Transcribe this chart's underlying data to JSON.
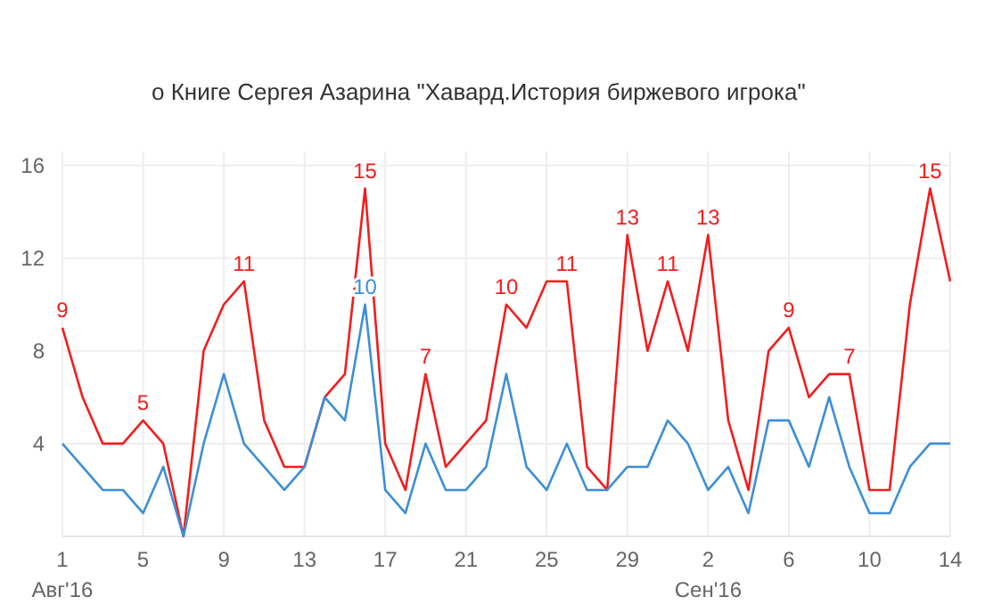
{
  "chart_data": {
    "type": "line",
    "subtitle": "о Книге Сергея Азарина \"Хавард.История биржевого игрока\"",
    "x": [
      "2016-08-01",
      "2016-08-02",
      "2016-08-03",
      "2016-08-04",
      "2016-08-05",
      "2016-08-06",
      "2016-08-07",
      "2016-08-08",
      "2016-08-09",
      "2016-08-10",
      "2016-08-11",
      "2016-08-12",
      "2016-08-13",
      "2016-08-14",
      "2016-08-15",
      "2016-08-16",
      "2016-08-17",
      "2016-08-18",
      "2016-08-19",
      "2016-08-20",
      "2016-08-21",
      "2016-08-22",
      "2016-08-23",
      "2016-08-24",
      "2016-08-25",
      "2016-08-26",
      "2016-08-27",
      "2016-08-28",
      "2016-08-29",
      "2016-08-30",
      "2016-08-31",
      "2016-09-01",
      "2016-09-02",
      "2016-09-03",
      "2016-09-04",
      "2016-09-05",
      "2016-09-06",
      "2016-09-07",
      "2016-09-08",
      "2016-09-09",
      "2016-09-10",
      "2016-09-11",
      "2016-09-12",
      "2016-09-13",
      "2016-09-14"
    ],
    "series": [
      {
        "color": "#f41c1c",
        "values": [
          9,
          6,
          4,
          4,
          5,
          4,
          0,
          8,
          10,
          11,
          5,
          3,
          3,
          6,
          7,
          15,
          4,
          2,
          7,
          3,
          4,
          5,
          10,
          9,
          11,
          11,
          3,
          2,
          13,
          8,
          11,
          8,
          13,
          5,
          2,
          8,
          9,
          6,
          7,
          7,
          2,
          2,
          10,
          15,
          11
        ],
        "value_labels": [
          "9",
          null,
          null,
          null,
          "5",
          null,
          null,
          null,
          null,
          "11",
          null,
          null,
          null,
          null,
          null,
          "15",
          null,
          null,
          "7",
          null,
          null,
          null,
          "10",
          null,
          null,
          "11",
          null,
          null,
          "13",
          null,
          "11",
          null,
          "13",
          null,
          null,
          null,
          "9",
          null,
          null,
          "7",
          null,
          null,
          null,
          "15",
          null
        ]
      },
      {
        "color": "#3d8fd6",
        "values": [
          4,
          3,
          2,
          2,
          1,
          3,
          0,
          4,
          7,
          4,
          3,
          2,
          3,
          6,
          5,
          10,
          2,
          1,
          4,
          2,
          2,
          3,
          7,
          3,
          2,
          4,
          2,
          2,
          3,
          3,
          5,
          4,
          2,
          3,
          1,
          5,
          5,
          3,
          6,
          3,
          1,
          1,
          3,
          4,
          4
        ],
        "value_labels": [
          null,
          null,
          null,
          null,
          null,
          null,
          null,
          null,
          null,
          null,
          null,
          null,
          null,
          null,
          null,
          "10",
          null,
          null,
          null,
          null,
          null,
          null,
          null,
          null,
          null,
          null,
          null,
          null,
          null,
          null,
          null,
          null,
          null,
          null,
          null,
          null,
          null,
          null,
          null,
          null,
          null,
          null,
          null,
          null,
          null
        ]
      }
    ],
    "xlim": [
      "2016-08-01",
      "2016-09-14"
    ],
    "xticks": [
      {
        "value": "2016-08-01",
        "label": "1\nАвг'16"
      },
      {
        "value": "2016-08-05",
        "label": "5"
      },
      {
        "value": "2016-08-09",
        "label": "9"
      },
      {
        "value": "2016-08-13",
        "label": "13"
      },
      {
        "value": "2016-08-17",
        "label": "17"
      },
      {
        "value": "2016-08-21",
        "label": "21"
      },
      {
        "value": "2016-08-25",
        "label": "25"
      },
      {
        "value": "2016-08-29",
        "label": "29"
      },
      {
        "value": "2016-09-02",
        "label": "2\nСен'16"
      },
      {
        "value": "2016-09-06",
        "label": "6"
      },
      {
        "value": "2016-09-10",
        "label": "10"
      },
      {
        "value": "2016-09-14",
        "label": "14"
      }
    ],
    "ylim": [
      0,
      16.6
    ],
    "yticks": [
      4,
      8,
      12,
      16
    ],
    "grid": true,
    "marker": "none",
    "line_style": "solid"
  }
}
